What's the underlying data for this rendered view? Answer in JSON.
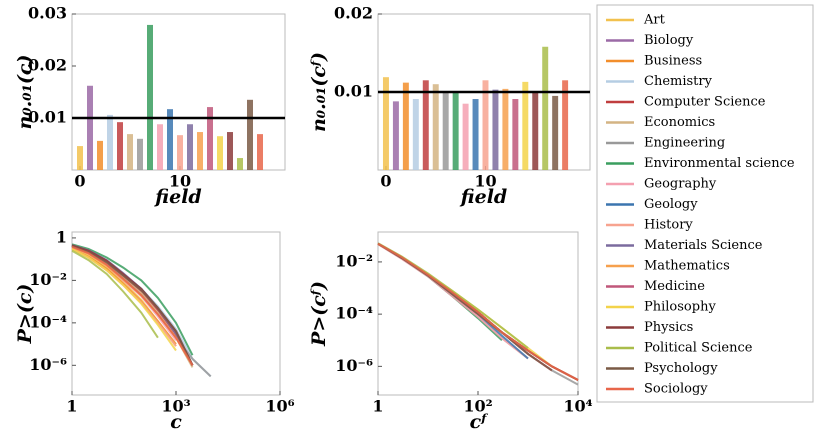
{
  "chart_data": [
    {
      "type": "bar",
      "xlabel": "field",
      "ylabel": "n₀.₀₁(c)",
      "x": [
        0,
        1,
        2,
        3,
        4,
        5,
        6,
        7,
        8,
        9,
        10,
        11,
        12,
        13,
        14,
        15,
        16,
        17,
        18
      ],
      "values": [
        0.0046,
        0.0162,
        0.0056,
        0.0106,
        0.0092,
        0.0069,
        0.006,
        0.0279,
        0.0088,
        0.0117,
        0.0067,
        0.0088,
        0.0073,
        0.0121,
        0.0065,
        0.0073,
        0.0023,
        0.0135,
        0.0069
      ],
      "colors": [
        "#f2c14e",
        "#9b6aa6",
        "#f28e2b",
        "#b5cde3",
        "#c03d3e",
        "#d4b483",
        "#999999",
        "#3a9e5f",
        "#f4a0b0",
        "#3b75af",
        "#f7a38f",
        "#7b6b9e",
        "#f6a04d",
        "#c0577a",
        "#f3d34a",
        "#8c3b3b",
        "#a9bd4a",
        "#7a5a45",
        "#e8664a"
      ],
      "hline": 0.01,
      "xlim": [
        -0.8,
        20.5
      ],
      "xticks": [
        0,
        10
      ],
      "ylim": [
        0,
        0.03
      ],
      "yticks": [
        0.01,
        0.02,
        0.03
      ]
    },
    {
      "type": "bar",
      "xlabel": "field",
      "ylabel": "n₀.₀₁(cᶠ)",
      "x": [
        0,
        1,
        2,
        3,
        4,
        5,
        6,
        7,
        8,
        9,
        10,
        11,
        12,
        13,
        14,
        15,
        16,
        17,
        18
      ],
      "values": [
        0.0119,
        0.0088,
        0.0112,
        0.0091,
        0.0115,
        0.011,
        0.0099,
        0.01,
        0.0085,
        0.0091,
        0.0115,
        0.0103,
        0.0104,
        0.0091,
        0.0113,
        0.01,
        0.0158,
        0.0095,
        0.0115
      ],
      "colors": [
        "#f2c14e",
        "#9b6aa6",
        "#f28e2b",
        "#b5cde3",
        "#c03d3e",
        "#d4b483",
        "#999999",
        "#3a9e5f",
        "#f4a0b0",
        "#3b75af",
        "#f7a38f",
        "#7b6b9e",
        "#f6a04d",
        "#c0577a",
        "#f3d34a",
        "#8c3b3b",
        "#a9bd4a",
        "#7a5a45",
        "#e8664a"
      ],
      "hline": 0.01,
      "xlim": [
        -0.8,
        20.5
      ],
      "xticks": [
        0,
        10
      ],
      "ylim": [
        0,
        0.02
      ],
      "yticks": [
        0.01,
        0.02
      ]
    },
    {
      "type": "line",
      "xlabel": "c",
      "ylabel": "P>(c)",
      "log": true,
      "x": [
        1,
        3,
        10,
        30,
        100,
        300,
        1000,
        3000,
        10000
      ],
      "xlim": [
        1,
        1000000
      ],
      "xticks": [
        1,
        {
          "value": 1000,
          "label": "10³"
        },
        {
          "value": 1000000,
          "label": "10⁶"
        }
      ],
      "ylim": [
        4e-08,
        1.9
      ],
      "yticks": [
        1,
        {
          "value": 0.01,
          "label": "10⁻²"
        },
        {
          "value": 0.0001,
          "label": "10⁻⁴"
        },
        {
          "value": 1e-06,
          "label": "10⁻⁶"
        }
      ],
      "series": [
        {
          "name": "Art",
          "color": "#f2c14e",
          "values": [
            0.35,
            0.15,
            0.04,
            0.008,
            0.0012,
            0.00012,
            8e-06,
            null,
            null
          ]
        },
        {
          "name": "Biology",
          "color": "#9b6aa6",
          "values": [
            0.45,
            0.25,
            0.08,
            0.018,
            0.003,
            0.0004,
            3e-05,
            1e-06,
            null
          ]
        },
        {
          "name": "Business",
          "color": "#f28e2b",
          "values": [
            0.3,
            0.13,
            0.035,
            0.007,
            0.001,
            0.00012,
            1e-05,
            null,
            null
          ]
        },
        {
          "name": "Chemistry",
          "color": "#b5cde3",
          "values": [
            0.45,
            0.25,
            0.08,
            0.02,
            0.004,
            0.0006,
            5e-05,
            2e-06,
            3e-07
          ]
        },
        {
          "name": "Computer Science",
          "color": "#c03d3e",
          "values": [
            0.42,
            0.22,
            0.07,
            0.016,
            0.003,
            0.0004,
            3e-05,
            1e-06,
            null
          ]
        },
        {
          "name": "Economics",
          "color": "#d4b483",
          "values": [
            0.4,
            0.2,
            0.06,
            0.013,
            0.0025,
            0.0003,
            2e-05,
            8e-07,
            null
          ]
        },
        {
          "name": "Engineering",
          "color": "#999999",
          "values": [
            0.4,
            0.2,
            0.06,
            0.012,
            0.002,
            0.00025,
            2e-05,
            2e-06,
            3e-07
          ]
        },
        {
          "name": "Environmental science",
          "color": "#3a9e5f",
          "values": [
            0.5,
            0.3,
            0.12,
            0.04,
            0.01,
            0.0015,
            0.0001,
            3e-06,
            null
          ]
        },
        {
          "name": "Geography",
          "color": "#f4a0b0",
          "values": [
            0.38,
            0.18,
            0.05,
            0.01,
            0.0018,
            0.0002,
            1.5e-05,
            null,
            null
          ]
        },
        {
          "name": "Geology",
          "color": "#3b75af",
          "values": [
            0.45,
            0.25,
            0.085,
            0.02,
            0.004,
            0.0005,
            4e-05,
            1e-06,
            null
          ]
        },
        {
          "name": "History",
          "color": "#f7a38f",
          "values": [
            0.3,
            0.12,
            0.03,
            0.006,
            0.0009,
            0.0001,
            8e-06,
            null,
            null
          ]
        },
        {
          "name": "Materials Science",
          "color": "#7b6b9e",
          "values": [
            0.45,
            0.26,
            0.09,
            0.022,
            0.004,
            0.0005,
            3e-05,
            1e-06,
            null
          ]
        },
        {
          "name": "Mathematics",
          "color": "#f6a04d",
          "values": [
            0.38,
            0.18,
            0.05,
            0.011,
            0.002,
            0.00025,
            2e-05,
            1e-06,
            null
          ]
        },
        {
          "name": "Medicine",
          "color": "#c0577a",
          "values": [
            0.45,
            0.24,
            0.08,
            0.018,
            0.0035,
            0.0005,
            4e-05,
            1e-06,
            null
          ]
        },
        {
          "name": "Philosophy",
          "color": "#f3d34a",
          "values": [
            0.3,
            0.12,
            0.03,
            0.006,
            0.0008,
            8e-05,
            5e-06,
            null,
            null
          ]
        },
        {
          "name": "Physics",
          "color": "#8c3b3b",
          "values": [
            0.45,
            0.25,
            0.085,
            0.02,
            0.004,
            0.0005,
            4e-05,
            1e-06,
            null
          ]
        },
        {
          "name": "Political Science",
          "color": "#a9bd4a",
          "values": [
            0.25,
            0.09,
            0.02,
            0.003,
            0.0003,
            2e-05,
            null,
            null,
            null
          ]
        },
        {
          "name": "Psychology",
          "color": "#7a5a45",
          "values": [
            0.42,
            0.22,
            0.07,
            0.017,
            0.0035,
            0.0005,
            4e-05,
            1e-06,
            null
          ]
        },
        {
          "name": "Sociology",
          "color": "#e8664a",
          "values": [
            0.38,
            0.19,
            0.055,
            0.012,
            0.002,
            0.00025,
            2e-05,
            1e-06,
            null
          ]
        }
      ]
    },
    {
      "type": "line",
      "xlabel": "cᶠ",
      "ylabel": "P>(cᶠ)",
      "log": true,
      "x": [
        1,
        3,
        10,
        30,
        100,
        300,
        1000,
        3000,
        10000
      ],
      "xlim": [
        1,
        10000
      ],
      "xticks": [
        1,
        {
          "value": 100,
          "label": "10²"
        },
        {
          "value": 10000,
          "label": "10⁴"
        }
      ],
      "ylim": [
        8e-08,
        0.14
      ],
      "yticks": [
        {
          "value": 0.01,
          "label": "10⁻²"
        },
        {
          "value": 0.0001,
          "label": "10⁻⁴"
        },
        {
          "value": 1e-06,
          "label": "10⁻⁶"
        }
      ],
      "series": [
        {
          "color": "#f2c14e",
          "values": [
            0.05,
            0.014,
            0.003,
            0.0006,
            0.0001,
            2e-05,
            3e-06,
            7e-07,
            null
          ]
        },
        {
          "color": "#9b6aa6",
          "values": [
            0.05,
            0.015,
            0.0032,
            0.0007,
            0.00012,
            2e-05,
            4e-06,
            1e-06,
            3e-07
          ]
        },
        {
          "color": "#f28e2b",
          "values": [
            0.05,
            0.015,
            0.0032,
            0.0007,
            0.00012,
            2e-05,
            4e-06,
            1e-06,
            3e-07
          ]
        },
        {
          "color": "#b5cde3",
          "values": [
            0.05,
            0.014,
            0.003,
            0.0006,
            0.0001,
            2e-05,
            3e-06,
            7e-07,
            null
          ]
        },
        {
          "color": "#c03d3e",
          "values": [
            0.05,
            0.015,
            0.0032,
            0.0007,
            0.00012,
            2e-05,
            4e-06,
            1e-06,
            3e-07
          ]
        },
        {
          "color": "#d4b483",
          "values": [
            0.048,
            0.013,
            0.0028,
            0.0005,
            8e-05,
            1.2e-05,
            2e-06,
            null,
            null
          ]
        },
        {
          "color": "#999999",
          "values": [
            0.05,
            0.014,
            0.003,
            0.0006,
            0.0001,
            2e-05,
            3e-06,
            7e-07,
            2e-07
          ]
        },
        {
          "color": "#3a9e5f",
          "values": [
            0.05,
            0.014,
            0.0028,
            0.0005,
            7e-05,
            1e-05,
            null,
            null,
            null
          ]
        },
        {
          "color": "#f4a0b0",
          "values": [
            0.048,
            0.013,
            0.0028,
            0.0005,
            8e-05,
            1.2e-05,
            2e-06,
            null,
            null
          ]
        },
        {
          "color": "#3b75af",
          "values": [
            0.05,
            0.014,
            0.003,
            0.0006,
            0.0001,
            1.5e-05,
            2e-06,
            null,
            null
          ]
        },
        {
          "color": "#f7a38f",
          "values": [
            0.05,
            0.014,
            0.003,
            0.0006,
            0.0001,
            2e-05,
            3e-06,
            7e-07,
            null
          ]
        },
        {
          "color": "#7b6b9e",
          "values": [
            0.05,
            0.015,
            0.0032,
            0.0007,
            0.00012,
            2e-05,
            4e-06,
            1e-06,
            null
          ]
        },
        {
          "color": "#f6a04d",
          "values": [
            0.05,
            0.015,
            0.0032,
            0.0007,
            0.00012,
            2e-05,
            4e-06,
            1e-06,
            3e-07
          ]
        },
        {
          "color": "#c0577a",
          "values": [
            0.05,
            0.014,
            0.003,
            0.0006,
            0.0001,
            2e-05,
            3e-06,
            7e-07,
            null
          ]
        },
        {
          "color": "#f3d34a",
          "values": [
            0.05,
            0.015,
            0.0034,
            0.0008,
            0.00015,
            3e-05,
            5e-06,
            1e-06,
            null
          ]
        },
        {
          "color": "#8c3b3b",
          "values": [
            0.05,
            0.015,
            0.0032,
            0.0007,
            0.00012,
            2e-05,
            4e-06,
            1e-06,
            3e-07
          ]
        },
        {
          "color": "#a9bd4a",
          "values": [
            0.052,
            0.016,
            0.0036,
            0.0008,
            0.00015,
            3e-05,
            5e-06,
            null,
            null
          ]
        },
        {
          "color": "#7a5a45",
          "values": [
            0.05,
            0.014,
            0.003,
            0.0006,
            0.0001,
            2e-05,
            3e-06,
            7e-07,
            null
          ]
        },
        {
          "color": "#e8664a",
          "values": [
            0.05,
            0.015,
            0.0032,
            0.0007,
            0.00012,
            2e-05,
            4e-06,
            1e-06,
            3e-07
          ]
        }
      ]
    }
  ]
}
